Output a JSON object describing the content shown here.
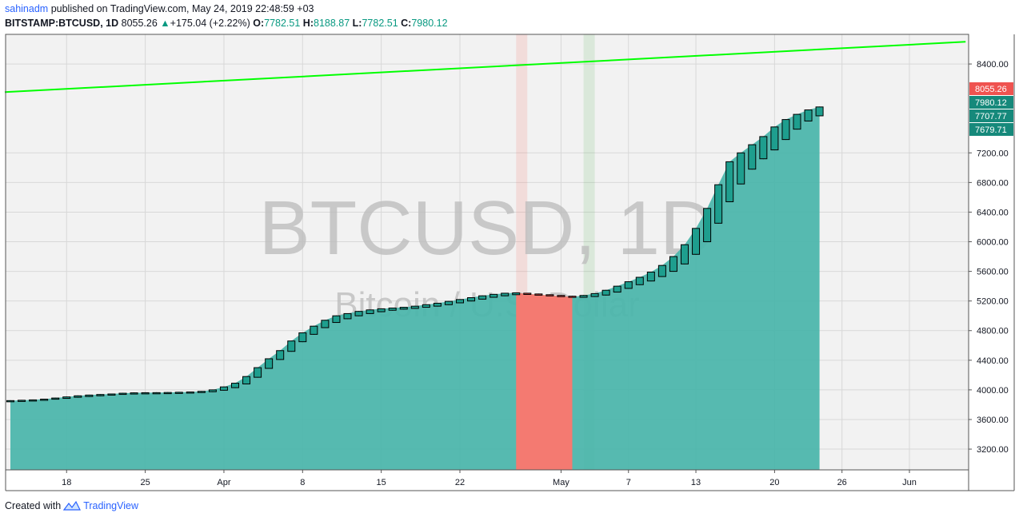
{
  "header": {
    "user": "sahinadm",
    "published": "published on TradingView.com, May 24, 2019 22:48:59 +03",
    "symbol": "BITSTAMP:BTCUSD, 1D",
    "last": "8055.26",
    "change": "+175.04 (+2.22%)",
    "o_label": "O:",
    "o_value": "7782.51",
    "h_label": "H:",
    "h_value": "8188.87",
    "l_label": "L:",
    "l_value": "7782.51",
    "c_label": "C:",
    "c_value": "7980.12"
  },
  "footer": {
    "created_with": "Created with",
    "brand": "TradingView"
  },
  "colors": {
    "up": "#089981",
    "area": "#4db6ac",
    "red_band": "#f47a71",
    "trend": "#00ff00",
    "price_label_red": "#ef5350",
    "price_label_teal": "#16897b"
  },
  "chart_data": {
    "type": "candlestick",
    "watermark": {
      "symbol": "BTCUSD, 1D",
      "name": "Bitcoin / U.S. Dollar"
    },
    "x_tick_labels": [
      "18",
      "25",
      "Apr",
      "8",
      "15",
      "22",
      "May",
      "7",
      "13",
      "20",
      "26",
      "Jun"
    ],
    "y_tick_labels": [
      3200,
      3600,
      4000,
      4400,
      4800,
      5200,
      5600,
      6000,
      6400,
      6800,
      7200,
      8400
    ],
    "price_labels": [
      {
        "text": "8055.26",
        "value": 8055.26,
        "color": "red"
      },
      {
        "text": "7980.12",
        "value": 7980.12,
        "color": "teal"
      },
      {
        "text": "7707.77",
        "value": 7707.77,
        "color": "teal"
      },
      {
        "text": "7679.71",
        "value": 7679.71,
        "color": "teal"
      }
    ],
    "ylim": [
      2920,
      8800
    ],
    "area_start_day": 0,
    "area_end_day": 72,
    "red_band_days": [
      45,
      50
    ],
    "vertical_highlights": [
      {
        "day": 45.5,
        "color": "red"
      },
      {
        "day": 51.5,
        "color": "green"
      }
    ],
    "trend_line": [
      {
        "day": -0.5,
        "price": 8020
      },
      {
        "day": 85,
        "price": 8700
      }
    ],
    "candles": [
      {
        "open": 3845,
        "close": 3855,
        "high": 3860,
        "low": 3840
      },
      {
        "open": 3850,
        "close": 3860,
        "high": 3865,
        "low": 3845
      },
      {
        "open": 3855,
        "close": 3865,
        "high": 3870,
        "low": 3850
      },
      {
        "open": 3865,
        "close": 3875,
        "high": 3880,
        "low": 3860
      },
      {
        "open": 3875,
        "close": 3890,
        "high": 3895,
        "low": 3870
      },
      {
        "open": 3885,
        "close": 3905,
        "high": 3910,
        "low": 3880
      },
      {
        "open": 3900,
        "close": 3920,
        "high": 3925,
        "low": 3895
      },
      {
        "open": 3910,
        "close": 3930,
        "high": 3935,
        "low": 3905
      },
      {
        "open": 3920,
        "close": 3938,
        "high": 3943,
        "low": 3915
      },
      {
        "open": 3930,
        "close": 3945,
        "high": 3950,
        "low": 3925
      },
      {
        "open": 3940,
        "close": 3955,
        "high": 3960,
        "low": 3935
      },
      {
        "open": 3945,
        "close": 3960,
        "high": 3965,
        "low": 3940
      },
      {
        "open": 3950,
        "close": 3962,
        "high": 3967,
        "low": 3945
      },
      {
        "open": 3952,
        "close": 3963,
        "high": 3968,
        "low": 3948
      },
      {
        "open": 3955,
        "close": 3965,
        "high": 3970,
        "low": 3950
      },
      {
        "open": 3958,
        "close": 3968,
        "high": 3973,
        "low": 3953
      },
      {
        "open": 3960,
        "close": 3972,
        "high": 3977,
        "low": 3955
      },
      {
        "open": 3965,
        "close": 3980,
        "high": 3985,
        "low": 3960
      },
      {
        "open": 3975,
        "close": 4000,
        "high": 4005,
        "low": 3970
      },
      {
        "open": 3995,
        "close": 4040,
        "high": 4045,
        "low": 3990
      },
      {
        "open": 4030,
        "close": 4090,
        "high": 4095,
        "low": 4025
      },
      {
        "open": 4080,
        "close": 4180,
        "high": 4185,
        "low": 4075
      },
      {
        "open": 4170,
        "close": 4300,
        "high": 4305,
        "low": 4165
      },
      {
        "open": 4290,
        "close": 4420,
        "high": 4425,
        "low": 4285
      },
      {
        "open": 4410,
        "close": 4530,
        "high": 4535,
        "low": 4405
      },
      {
        "open": 4520,
        "close": 4660,
        "high": 4665,
        "low": 4515
      },
      {
        "open": 4650,
        "close": 4770,
        "high": 4775,
        "low": 4645
      },
      {
        "open": 4750,
        "close": 4860,
        "high": 4865,
        "low": 4745
      },
      {
        "open": 4840,
        "close": 4940,
        "high": 4945,
        "low": 4835
      },
      {
        "open": 4910,
        "close": 5000,
        "high": 5005,
        "low": 4905
      },
      {
        "open": 4960,
        "close": 5030,
        "high": 5035,
        "low": 4955
      },
      {
        "open": 5000,
        "close": 5060,
        "high": 5065,
        "low": 4995
      },
      {
        "open": 5030,
        "close": 5080,
        "high": 5085,
        "low": 5025
      },
      {
        "open": 5055,
        "close": 5095,
        "high": 5100,
        "low": 5050
      },
      {
        "open": 5075,
        "close": 5105,
        "high": 5110,
        "low": 5070
      },
      {
        "open": 5090,
        "close": 5115,
        "high": 5120,
        "low": 5085
      },
      {
        "open": 5100,
        "close": 5130,
        "high": 5135,
        "low": 5095
      },
      {
        "open": 5115,
        "close": 5150,
        "high": 5155,
        "low": 5110
      },
      {
        "open": 5130,
        "close": 5170,
        "high": 5175,
        "low": 5125
      },
      {
        "open": 5150,
        "close": 5195,
        "high": 5200,
        "low": 5145
      },
      {
        "open": 5175,
        "close": 5220,
        "high": 5225,
        "low": 5170
      },
      {
        "open": 5200,
        "close": 5245,
        "high": 5250,
        "low": 5195
      },
      {
        "open": 5225,
        "close": 5270,
        "high": 5275,
        "low": 5220
      },
      {
        "open": 5250,
        "close": 5290,
        "high": 5295,
        "low": 5245
      },
      {
        "open": 5270,
        "close": 5305,
        "high": 5310,
        "low": 5265
      },
      {
        "open": 5285,
        "close": 5310,
        "high": 5315,
        "low": 5280
      },
      {
        "open": 5305,
        "close": 5295,
        "high": 5310,
        "low": 5290
      },
      {
        "open": 5295,
        "close": 5285,
        "high": 5300,
        "low": 5280
      },
      {
        "open": 5285,
        "close": 5275,
        "high": 5290,
        "low": 5270
      },
      {
        "open": 5275,
        "close": 5265,
        "high": 5280,
        "low": 5260
      },
      {
        "open": 5265,
        "close": 5255,
        "high": 5270,
        "low": 5250
      },
      {
        "open": 5250,
        "close": 5275,
        "high": 5280,
        "low": 5245
      },
      {
        "open": 5260,
        "close": 5300,
        "high": 5305,
        "low": 5255
      },
      {
        "open": 5280,
        "close": 5345,
        "high": 5350,
        "low": 5275
      },
      {
        "open": 5320,
        "close": 5400,
        "high": 5405,
        "low": 5315
      },
      {
        "open": 5370,
        "close": 5460,
        "high": 5465,
        "low": 5365
      },
      {
        "open": 5420,
        "close": 5520,
        "high": 5525,
        "low": 5415
      },
      {
        "open": 5470,
        "close": 5590,
        "high": 5595,
        "low": 5465
      },
      {
        "open": 5530,
        "close": 5680,
        "high": 5685,
        "low": 5525
      },
      {
        "open": 5600,
        "close": 5800,
        "high": 5805,
        "low": 5595
      },
      {
        "open": 5700,
        "close": 5960,
        "high": 5965,
        "low": 5695
      },
      {
        "open": 5830,
        "close": 6180,
        "high": 6185,
        "low": 5825
      },
      {
        "open": 6000,
        "close": 6450,
        "high": 6455,
        "low": 5995
      },
      {
        "open": 6250,
        "close": 6770,
        "high": 6775,
        "low": 6245
      },
      {
        "open": 6540,
        "close": 7080,
        "high": 7085,
        "low": 6535
      },
      {
        "open": 6780,
        "close": 7200,
        "high": 7205,
        "low": 6775
      },
      {
        "open": 6980,
        "close": 7310,
        "high": 7315,
        "low": 6975
      },
      {
        "open": 7120,
        "close": 7420,
        "high": 7425,
        "low": 7115
      },
      {
        "open": 7240,
        "close": 7550,
        "high": 7555,
        "low": 7235
      },
      {
        "open": 7380,
        "close": 7650,
        "high": 7655,
        "low": 7375
      },
      {
        "open": 7520,
        "close": 7720,
        "high": 7725,
        "low": 7515
      },
      {
        "open": 7630,
        "close": 7780,
        "high": 7785,
        "low": 7625
      },
      {
        "open": 7700,
        "close": 7820,
        "high": 7825,
        "low": 7695
      }
    ]
  }
}
